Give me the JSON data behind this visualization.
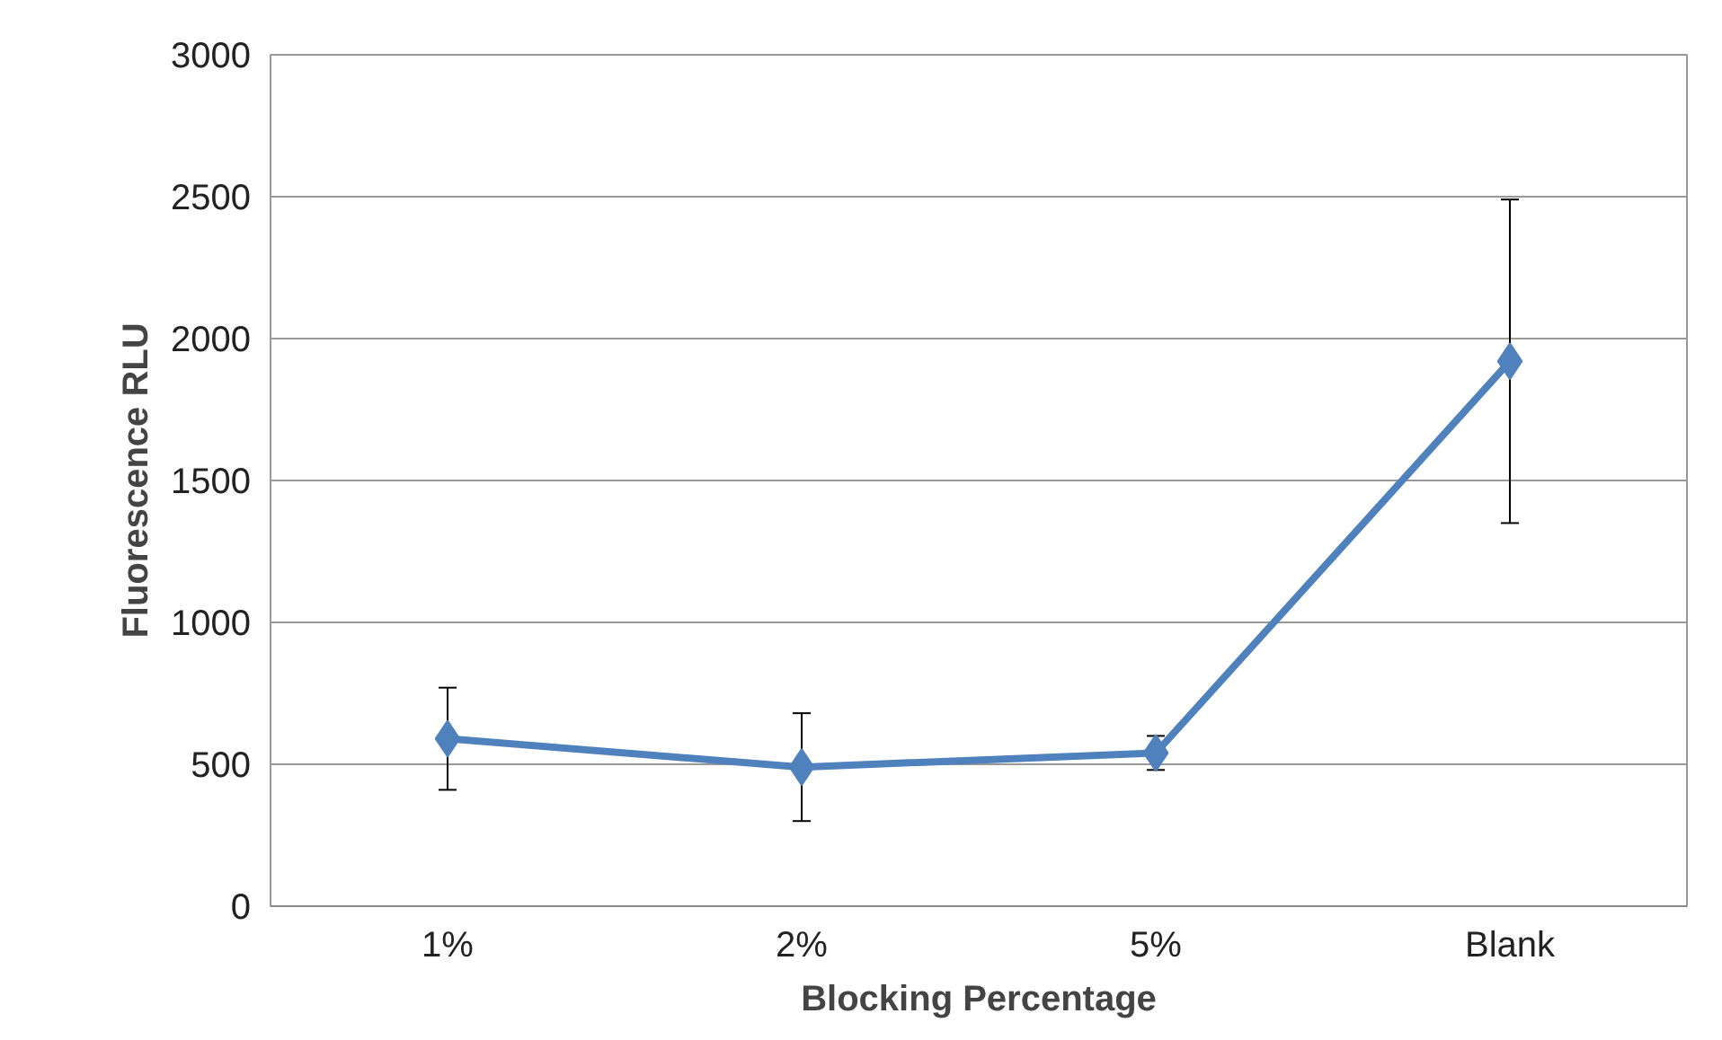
{
  "chart_data": {
    "type": "line",
    "xlabel": "Blocking Percentage",
    "ylabel": "Fluorescence RLU",
    "categories": [
      "1%",
      "2%",
      "5%",
      "Blank"
    ],
    "series": [
      {
        "color": "#4f81bd",
        "values": [
          590,
          490,
          540,
          1920
        ],
        "errors": [
          180,
          190,
          60,
          570
        ]
      }
    ],
    "ylim": [
      0,
      3000
    ],
    "yticks": [
      0,
      500,
      1000,
      1500,
      2000,
      2500,
      3000
    ],
    "grid": "y",
    "marker": "diamond",
    "line_style": "solid"
  }
}
